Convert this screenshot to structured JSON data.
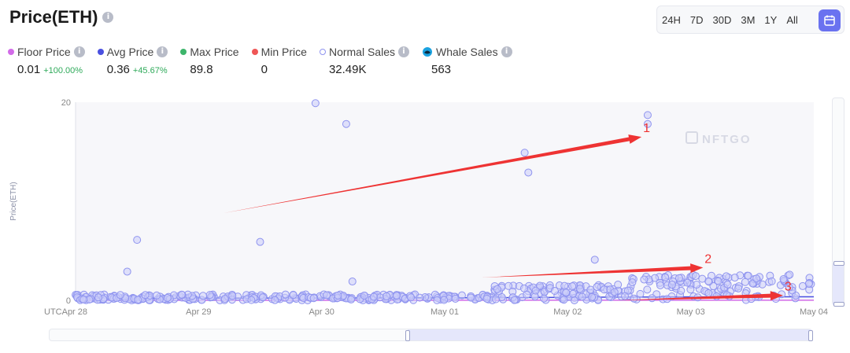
{
  "header": {
    "title": "Price(ETH)",
    "info_icon": "info-icon"
  },
  "time_range": {
    "options": [
      "24H",
      "7D",
      "30D",
      "3M",
      "1Y",
      "All"
    ],
    "calendar_icon": "calendar-icon",
    "selected": "calendar"
  },
  "stats": [
    {
      "label": "Floor Price",
      "value": "0.01",
      "change": "+100.00%",
      "color": "#d26be8"
    },
    {
      "label": "Avg Price",
      "value": "0.36",
      "change": "+45.67%",
      "color": "#4a50e0"
    },
    {
      "label": "Max Price",
      "value": "89.8",
      "change": "",
      "color": "#3db56b"
    },
    {
      "label": "Min Price",
      "value": "0",
      "change": "",
      "color": "#ef5656"
    },
    {
      "label": "Normal Sales",
      "value": "32.49K",
      "change": "",
      "color": "#8f94ef"
    },
    {
      "label": "Whale Sales",
      "value": "563",
      "change": "",
      "color": "#1aa2e0"
    }
  ],
  "chart_data": {
    "type": "scatter",
    "watermark": "NFTGO",
    "ylabel": "Price(ETH)",
    "x_tick_prefix": "UTC",
    "x_ticks": [
      "Apr 28",
      "Apr 29",
      "Apr 30",
      "May 01",
      "May 02",
      "May 03",
      "May 04"
    ],
    "y_ticks": [
      "0",
      "20"
    ],
    "ylim": [
      0,
      20
    ],
    "xlim": [
      0,
      6
    ],
    "grid": false,
    "normal_sales_outliers": [
      {
        "x": 0.42,
        "y": 2.9
      },
      {
        "x": 0.5,
        "y": 6.1
      },
      {
        "x": 1.5,
        "y": 5.9
      },
      {
        "x": 1.95,
        "y": 19.9
      },
      {
        "x": 2.2,
        "y": 17.8
      },
      {
        "x": 2.25,
        "y": 1.9
      },
      {
        "x": 3.65,
        "y": 14.9
      },
      {
        "x": 3.68,
        "y": 12.9
      },
      {
        "x": 4.22,
        "y": 4.1
      },
      {
        "x": 4.65,
        "y": 18.7
      },
      {
        "x": 4.65,
        "y": 17.8
      },
      {
        "x": 5.3,
        "y": 1.6
      },
      {
        "x": 5.8,
        "y": 1.3
      }
    ],
    "floor_line": [
      {
        "x": 0,
        "y": 0.0
      },
      {
        "x": 6,
        "y": 0.01
      }
    ],
    "avg_line": [
      {
        "x": 0,
        "y": 0.2
      },
      {
        "x": 3,
        "y": 0.25
      },
      {
        "x": 4,
        "y": 0.3
      },
      {
        "x": 5,
        "y": 0.35
      },
      {
        "x": 6,
        "y": 0.36
      }
    ],
    "annotations": [
      {
        "label": "1",
        "from": {
          "x": 1.2,
          "y": 8.8
        },
        "to": {
          "x": 4.6,
          "y": 16.5
        }
      },
      {
        "label": "2",
        "from": {
          "x": 3.3,
          "y": 2.3
        },
        "to": {
          "x": 5.1,
          "y": 3.3
        }
      },
      {
        "label": "3",
        "from": {
          "x": 4.4,
          "y": 0.0
        },
        "to": {
          "x": 5.75,
          "y": 0.5
        }
      }
    ]
  }
}
